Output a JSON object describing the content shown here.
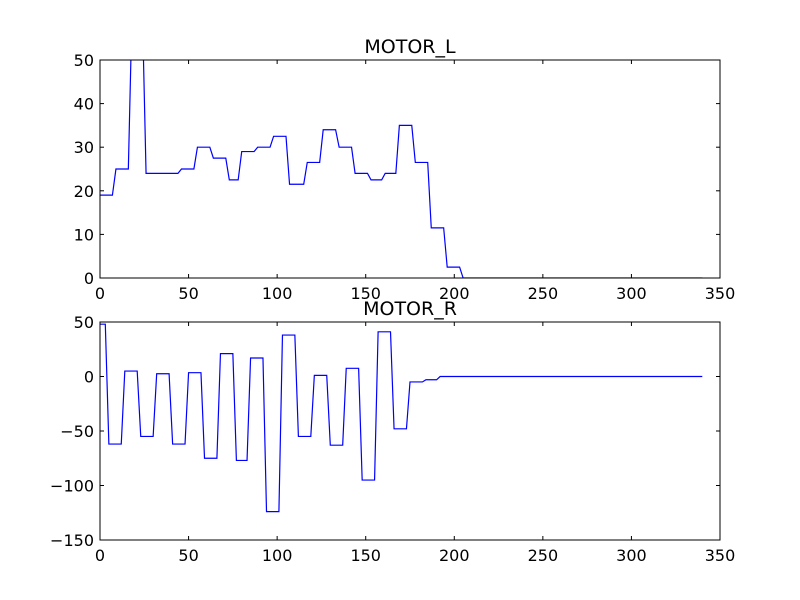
{
  "chart_data": [
    {
      "type": "line",
      "title": "MOTOR_L",
      "xlabel": "",
      "ylabel": "",
      "xlim": [
        0,
        350
      ],
      "ylim": [
        0,
        50
      ],
      "xticks": [
        0,
        50,
        100,
        150,
        200,
        250,
        300,
        350
      ],
      "yticks": [
        0,
        10,
        20,
        30,
        40,
        50
      ],
      "xtick_labels": [
        "0",
        "50",
        "100",
        "150",
        "200",
        "250",
        "300",
        "350"
      ],
      "ytick_labels": [
        "0",
        "10",
        "20",
        "30",
        "40",
        "50"
      ],
      "grid": false,
      "series": [
        {
          "color": "#0000ff",
          "x": [
            0,
            7,
            9,
            16,
            18,
            24,
            26,
            44,
            46,
            53,
            55,
            62,
            64,
            71,
            73,
            78,
            80,
            87,
            89,
            96,
            98,
            105,
            107,
            115,
            117,
            124,
            126,
            133,
            135,
            142,
            144,
            151,
            153,
            159,
            161,
            167,
            169,
            176,
            178,
            185,
            187,
            194,
            196,
            203,
            205,
            340
          ],
          "y": [
            19,
            19,
            25,
            25,
            60,
            60,
            24,
            24,
            25,
            25,
            30,
            30,
            27.5,
            27.5,
            22.5,
            22.5,
            29,
            29,
            30,
            30,
            32.5,
            32.5,
            21.5,
            21.5,
            26.5,
            26.5,
            34,
            34,
            30,
            30,
            24,
            24,
            22.5,
            22.5,
            24,
            24,
            35,
            35,
            26.5,
            26.5,
            11.5,
            11.5,
            2.5,
            2.5,
            0,
            0
          ]
        }
      ]
    },
    {
      "type": "line",
      "title": "MOTOR_R",
      "xlabel": "",
      "ylabel": "",
      "xlim": [
        0,
        350
      ],
      "ylim": [
        -150,
        50
      ],
      "xticks": [
        0,
        50,
        100,
        150,
        200,
        250,
        300,
        350
      ],
      "yticks": [
        -150,
        -100,
        -50,
        0,
        50
      ],
      "xtick_labels": [
        "0",
        "50",
        "100",
        "150",
        "200",
        "250",
        "300",
        "350"
      ],
      "ytick_labels": [
        "−150",
        "−100",
        "−50",
        "0",
        "50"
      ],
      "grid": false,
      "series": [
        {
          "color": "#0000ff",
          "x": [
            0,
            3,
            5,
            12,
            14,
            21,
            23,
            30,
            32,
            39,
            41,
            48,
            50,
            57,
            59,
            66,
            68,
            75,
            77,
            83,
            85,
            92,
            94,
            101,
            103,
            110,
            112,
            119,
            121,
            128,
            130,
            137,
            139,
            146,
            148,
            155,
            157,
            164,
            166,
            173,
            175,
            182,
            184,
            190,
            192,
            340
          ],
          "y": [
            48,
            48,
            -62,
            -62,
            5,
            5,
            -55,
            -55,
            2.5,
            2.5,
            -62,
            -62,
            3.5,
            3.5,
            -75,
            -75,
            21,
            21,
            -77,
            -77,
            17,
            17,
            -124,
            -124,
            38,
            38,
            -55,
            -55,
            1,
            1,
            -63,
            -63,
            7.5,
            7.5,
            -95,
            -95,
            41,
            41,
            -48,
            -48,
            -5,
            -5,
            -3,
            -3,
            0,
            0
          ]
        }
      ]
    }
  ]
}
